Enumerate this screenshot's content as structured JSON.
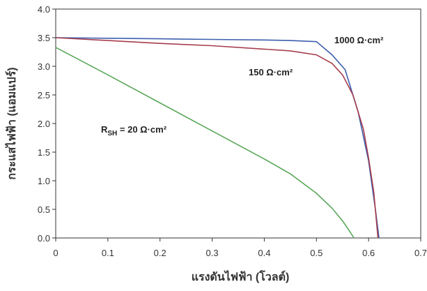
{
  "chart_data": {
    "type": "line",
    "xlabel": "แรงดันไฟฟ้า (โวลต์)",
    "ylabel": "กระแสไฟฟ้า (แอมแปร์)",
    "xlim": [
      0,
      0.7
    ],
    "xticks": [
      {
        "value": 0,
        "label": "0"
      },
      0.1,
      0.2,
      0.3,
      0.4,
      0.5,
      0.6,
      0.7
    ],
    "ylim": [
      0,
      4
    ],
    "yticks": [
      {
        "value": 0,
        "label": "0.0"
      },
      0.5,
      {
        "value": 1,
        "label": "1.0"
      },
      1.5,
      {
        "value": 2,
        "label": "2.0"
      },
      2.5,
      {
        "value": 3,
        "label": "3.0"
      },
      3.5,
      {
        "value": 4,
        "label": "4.0"
      }
    ],
    "grid": false,
    "series": [
      {
        "color": "#3d5fae",
        "x": [
          0,
          0.1,
          0.2,
          0.3,
          0.4,
          0.45,
          0.5,
          0.53,
          0.555,
          0.58,
          0.6,
          0.613,
          0.62
        ],
        "values": [
          3.5,
          3.49,
          3.48,
          3.47,
          3.46,
          3.45,
          3.43,
          3.2,
          2.94,
          2.2,
          1.35,
          0.5,
          0
        ]
      },
      {
        "color": "#a63d4d",
        "x": [
          0,
          0.1,
          0.2,
          0.3,
          0.4,
          0.45,
          0.5,
          0.53,
          0.55,
          0.57,
          0.59,
          0.6,
          0.61,
          0.618
        ],
        "values": [
          3.5,
          3.45,
          3.4,
          3.36,
          3.3,
          3.27,
          3.2,
          3.05,
          2.85,
          2.5,
          1.9,
          1.4,
          0.8,
          0
        ]
      },
      {
        "color": "#5aa85a",
        "x": [
          0,
          0.1,
          0.2,
          0.3,
          0.4,
          0.45,
          0.5,
          0.53,
          0.55,
          0.565,
          0.572
        ],
        "values": [
          3.33,
          2.85,
          2.36,
          1.87,
          1.38,
          1.12,
          0.78,
          0.52,
          0.3,
          0.1,
          0
        ]
      }
    ],
    "annotations": [
      {
        "text": "1000 Ω·cm²"
      },
      {
        "text": "150 Ω·cm²"
      },
      {
        "text": "R",
        "sub": "SH",
        "rest": " = 20 Ω·cm²"
      }
    ]
  }
}
